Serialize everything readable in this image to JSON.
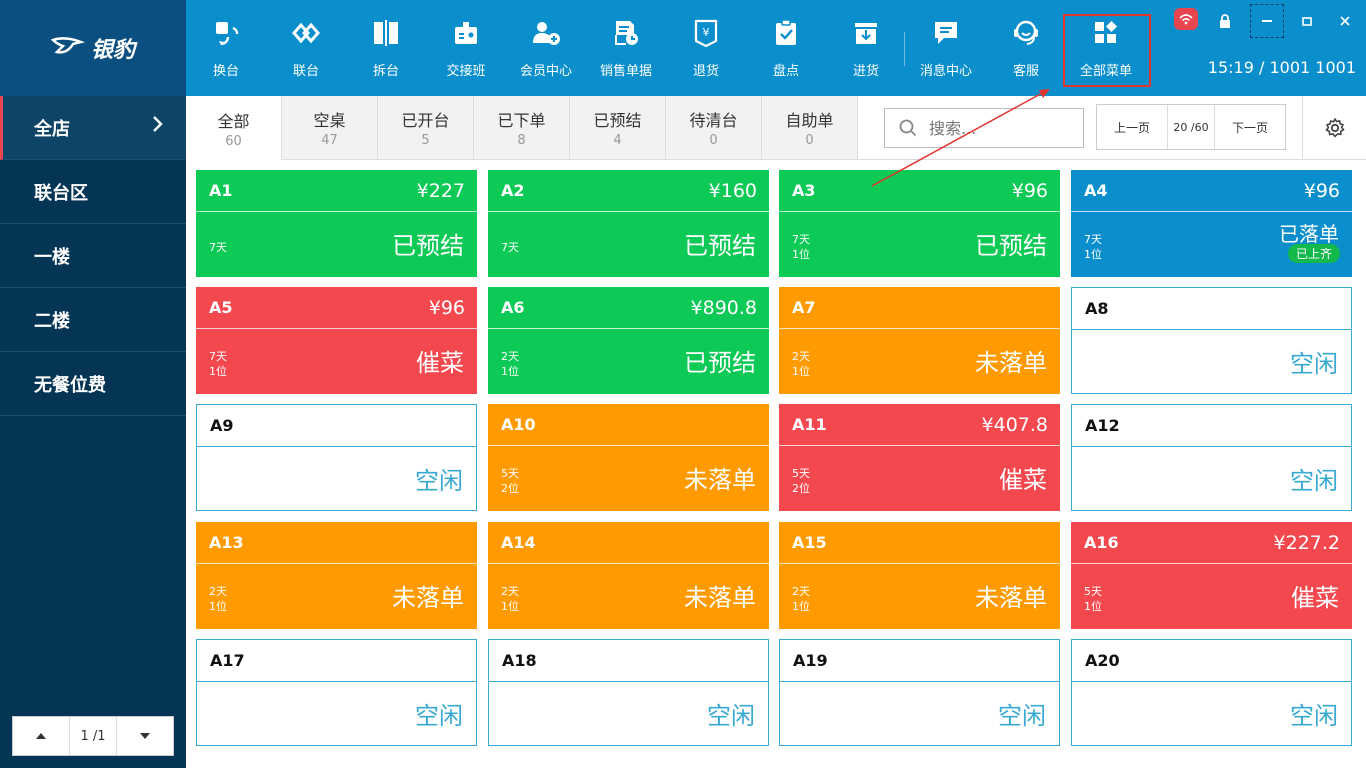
{
  "brand": {
    "name": "银豹"
  },
  "sidebar": {
    "items": [
      {
        "label": "全店"
      },
      {
        "label": "联台区"
      },
      {
        "label": "一楼"
      },
      {
        "label": "二楼"
      },
      {
        "label": "无餐位费"
      }
    ],
    "pager": {
      "text": "1 /1"
    }
  },
  "toolbar": {
    "items": [
      {
        "label": "换台",
        "icon": "swap-table-icon"
      },
      {
        "label": "联台",
        "icon": "link-table-icon"
      },
      {
        "label": "拆台",
        "icon": "split-table-icon"
      },
      {
        "label": "交接班",
        "icon": "shift-handover-icon"
      },
      {
        "label": "会员中心",
        "icon": "member-center-icon"
      },
      {
        "label": "销售单据",
        "icon": "sales-receipt-icon"
      },
      {
        "label": "退货",
        "icon": "return-goods-icon"
      },
      {
        "label": "盘点",
        "icon": "inventory-check-icon"
      },
      {
        "label": "进货",
        "icon": "purchase-icon"
      },
      {
        "label": "消息中心",
        "icon": "message-icon"
      },
      {
        "label": "客服",
        "icon": "customer-service-icon"
      },
      {
        "label": "全部菜单",
        "icon": "all-menu-icon"
      }
    ],
    "clock": "15:19  /  1001 1001"
  },
  "tabs": [
    {
      "label": "全部",
      "count": "60"
    },
    {
      "label": "空桌",
      "count": "47"
    },
    {
      "label": "已开台",
      "count": "5"
    },
    {
      "label": "已下单",
      "count": "8"
    },
    {
      "label": "已预结",
      "count": "4"
    },
    {
      "label": "待清台",
      "count": "0"
    },
    {
      "label": "自助单",
      "count": "0"
    }
  ],
  "search": {
    "placeholder": "搜索..."
  },
  "pager": {
    "prev": "上一页",
    "page": "20 /60",
    "next": "下一页"
  },
  "tables": [
    {
      "name": "A1",
      "price": "¥227",
      "status": "已预结",
      "meta1": "7天",
      "meta2": "",
      "color": "green"
    },
    {
      "name": "A2",
      "price": "¥160",
      "status": "已预结",
      "meta1": "7天",
      "meta2": "",
      "color": "green"
    },
    {
      "name": "A3",
      "price": "¥96",
      "status": "已预结",
      "meta1": "7天",
      "meta2": "1位",
      "color": "green"
    },
    {
      "name": "A4",
      "price": "¥96",
      "status": "已落单",
      "meta1": "7天",
      "meta2": "1位",
      "color": "blue",
      "badge": "已上齐"
    },
    {
      "name": "A5",
      "price": "¥96",
      "status": "催菜",
      "meta1": "7天",
      "meta2": "1位",
      "color": "red"
    },
    {
      "name": "A6",
      "price": "¥890.8",
      "status": "已预结",
      "meta1": "2天",
      "meta2": "1位",
      "color": "green"
    },
    {
      "name": "A7",
      "price": "",
      "status": "未落单",
      "meta1": "2天",
      "meta2": "1位",
      "color": "orange"
    },
    {
      "name": "A8",
      "price": "",
      "status": "空闲",
      "meta1": "",
      "meta2": "",
      "color": "blank"
    },
    {
      "name": "A9",
      "price": "",
      "status": "空闲",
      "meta1": "",
      "meta2": "",
      "color": "blank"
    },
    {
      "name": "A10",
      "price": "",
      "status": "未落单",
      "meta1": "5天",
      "meta2": "2位",
      "color": "orange"
    },
    {
      "name": "A11",
      "price": "¥407.8",
      "status": "催菜",
      "meta1": "5天",
      "meta2": "2位",
      "color": "red"
    },
    {
      "name": "A12",
      "price": "",
      "status": "空闲",
      "meta1": "",
      "meta2": "",
      "color": "blank"
    },
    {
      "name": "A13",
      "price": "",
      "status": "未落单",
      "meta1": "2天",
      "meta2": "1位",
      "color": "orange"
    },
    {
      "name": "A14",
      "price": "",
      "status": "未落单",
      "meta1": "2天",
      "meta2": "1位",
      "color": "orange"
    },
    {
      "name": "A15",
      "price": "",
      "status": "未落单",
      "meta1": "2天",
      "meta2": "1位",
      "color": "orange"
    },
    {
      "name": "A16",
      "price": "¥227.2",
      "status": "催菜",
      "meta1": "5天",
      "meta2": "1位",
      "color": "red"
    },
    {
      "name": "A17",
      "price": "",
      "status": "空闲",
      "meta1": "",
      "meta2": "",
      "color": "blank"
    },
    {
      "name": "A18",
      "price": "",
      "status": "空闲",
      "meta1": "",
      "meta2": "",
      "color": "blank"
    },
    {
      "name": "A19",
      "price": "",
      "status": "空闲",
      "meta1": "",
      "meta2": "",
      "color": "blank"
    },
    {
      "name": "A20",
      "price": "",
      "status": "空闲",
      "meta1": "",
      "meta2": "",
      "color": "blank"
    }
  ],
  "colors": {
    "green": "#0dc955",
    "orange": "#ff9b00",
    "red": "#f4484f",
    "blue": "#0a8fcc",
    "idle": "#38a9d2",
    "sidebar": "#053555",
    "annotation": "#e0362d"
  }
}
